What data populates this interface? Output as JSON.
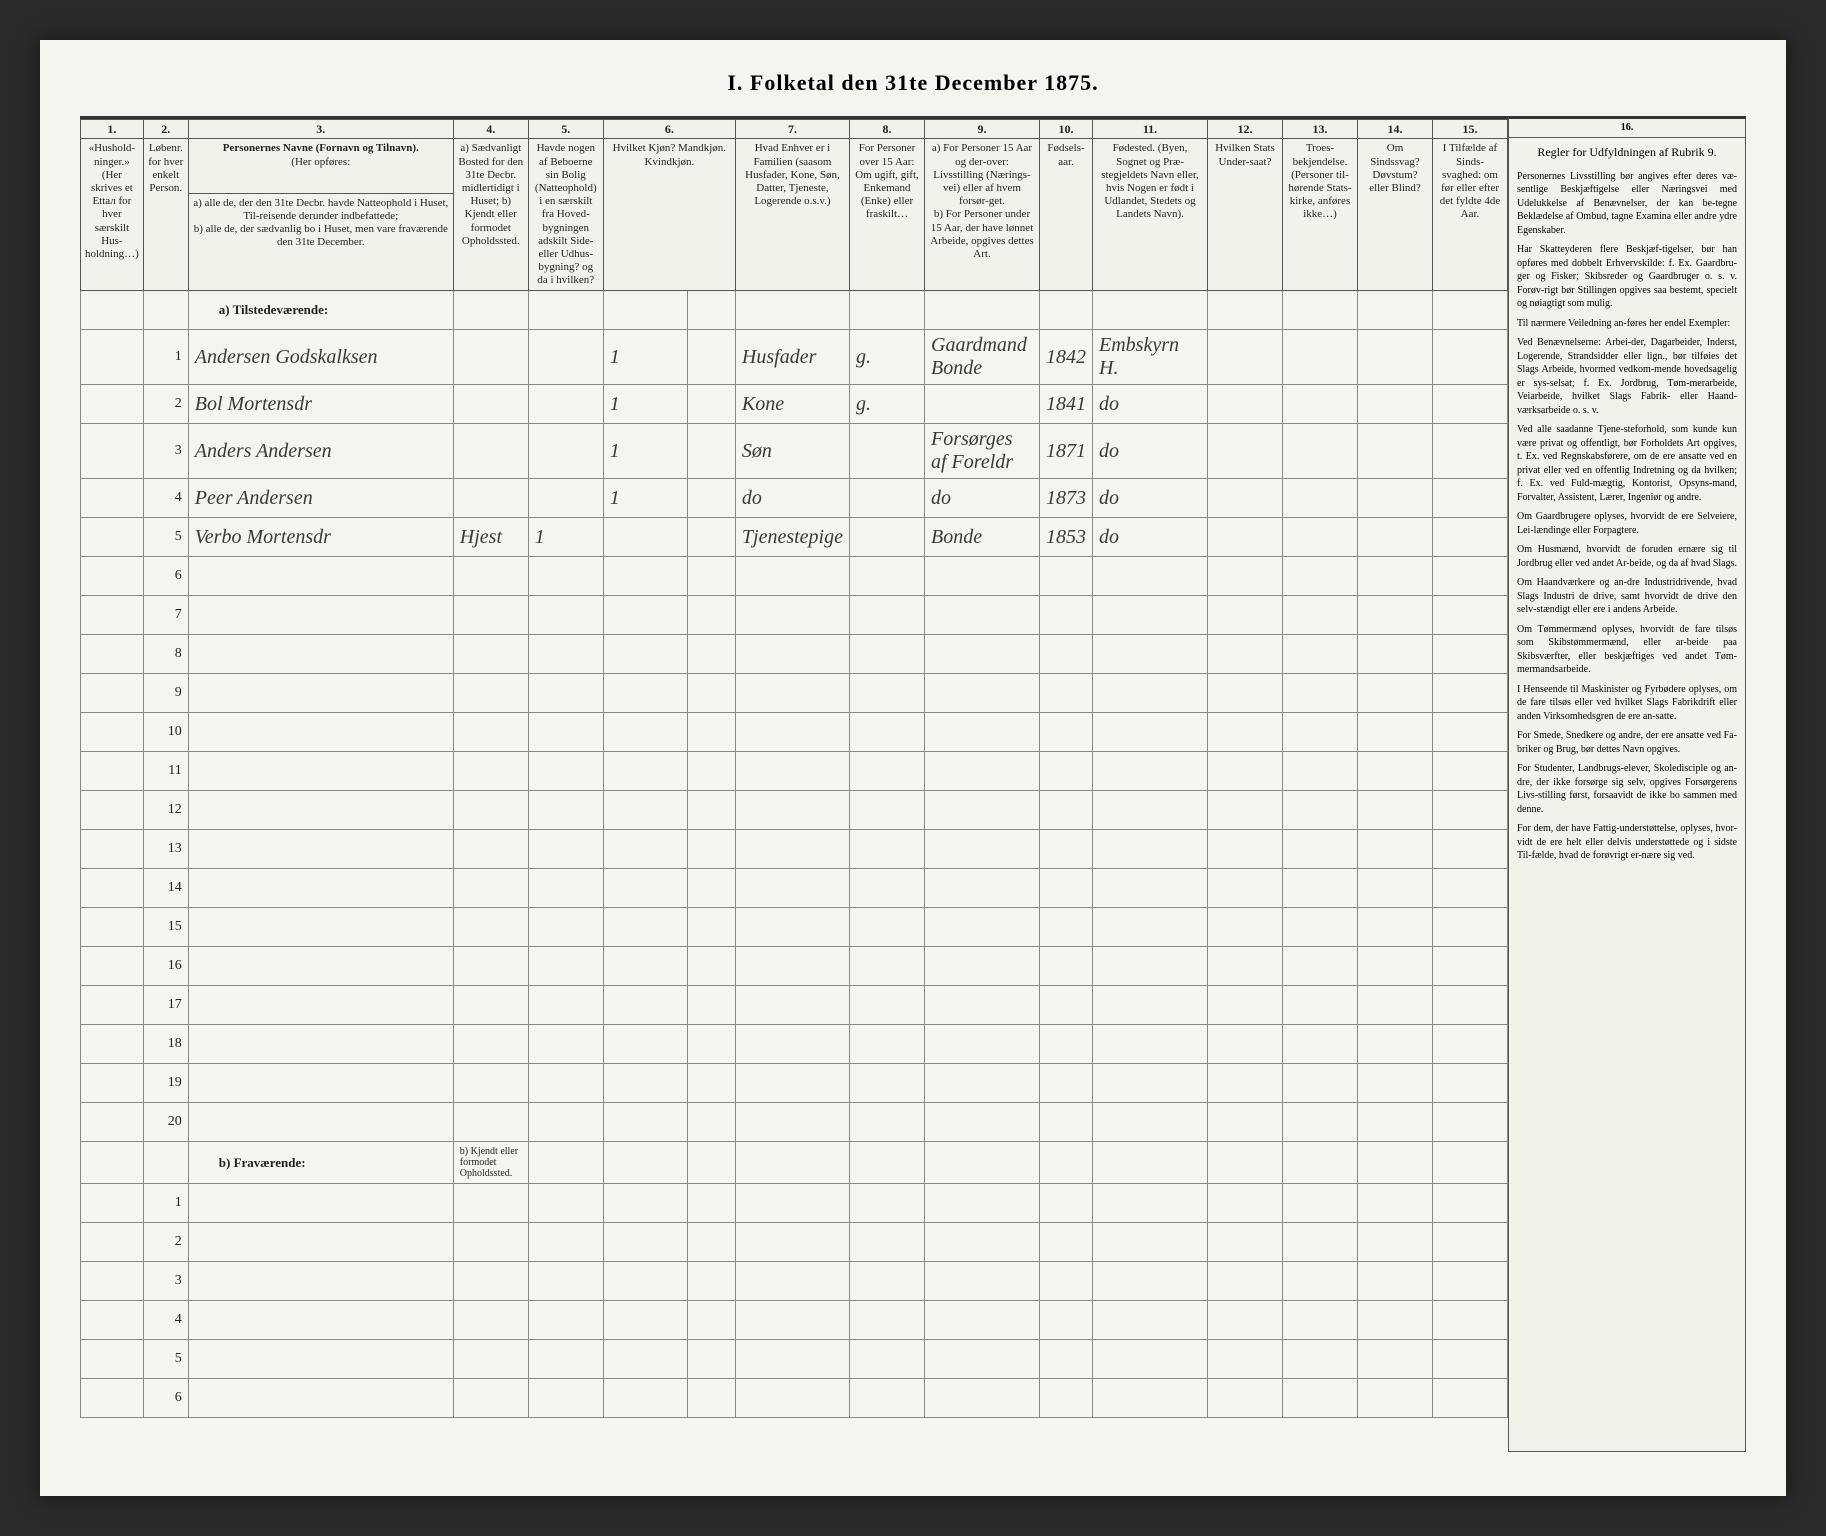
{
  "title": "I. Folketal den 31te December 1875.",
  "colnums": [
    "1.",
    "2.",
    "3.",
    "4.",
    "5.",
    "6.",
    "7.",
    "8.",
    "9.",
    "10.",
    "11.",
    "12.",
    "13.",
    "14.",
    "15."
  ],
  "headers": {
    "c1": "«Hushold-ninger.» (Her skrives et Ettал for hver særskilt Hus-holdning…)",
    "c2": "Løbenr. for hver enkelt Person.",
    "c3_title": "Personernes Navne (Fornavn og Tilnavn).",
    "c3_a": "a) alle de, der den 31te Decbr. havde Natteophold i Huset, Til-reisende derunder indbefattede;",
    "c3_b": "b) alle de, der sædvanlig bo i Huset, men vare fraværende den 31te December.",
    "c4": "a) Sædvanligt Bosted for den 31te Decbr. midlertidigt i Huset; b) Kjendt eller formodet Opholdssted.",
    "c5": "Havde nogen af Beboerne sin Bolig (Natteophold) i en særskilt fra Hoved-bygningen adskilt Side- eller Udhus-bygning? og da i hvilken?",
    "c6": "Hvilket Kjøn? Mandkjøn. Kvindkjøn.",
    "c7": "Hvad Enhver er i Familien (saasom Husfader, Kone, Søn, Datter, Tjenestе, Logerende о.s.v.)",
    "c8": "For Personer over 15 Aar: Om ugift, gift, Enkemand (Enke) eller fraskilt…",
    "c9_a": "a) For Personer 15 Aar og der-over: Livsstilling (Nærings-vei) eller af hvem forsør-get.",
    "c9_b": "b) For Personer under 15 Aar, der have lønnet Arbeide, opgives dettes Art.",
    "c10": "Fødsels-aar.",
    "c11": "Fødested. (Byen, Sognet og Præ-stegjeldets Navn eller, hvis Nogen er født i Udlandet, Stedets og Landets Navn).",
    "c12": "Hvilken Stats Under-saat?",
    "c13": "Troes-bekjendelse. (Personеr til-hørende Stats-kirkе, anføres ikke…)",
    "c14": "Om Sindssvag? Døvstum? eller Blind?",
    "c15": "I Tilfælde af Sinds-svaghed: om før eller efter det fyldte 4de Aar."
  },
  "section_a": "a) Tilstedeværende:",
  "section_b": "b) Fraværende:",
  "section_b_col4": "b) Kjendt eller formodet Opholdssted.",
  "rows": [
    {
      "n": "1",
      "name": "Andersen Godskalksen",
      "c5": "",
      "c6": "1",
      "c7": "Husfader",
      "c8": "g.",
      "c9": "Gaardmand Bonde",
      "c10": "1842",
      "c11": "Embskyrn H.",
      "c12": "",
      "c13": "",
      "c14": "",
      "c15": ""
    },
    {
      "n": "2",
      "name": "Bol Mortensdr",
      "c5": "",
      "c6": "1",
      "c7": "Kone",
      "c8": "g.",
      "c9": "",
      "c10": "1841",
      "c11": "do",
      "c12": "",
      "c13": "",
      "c14": "",
      "c15": ""
    },
    {
      "n": "3",
      "name": "Anders Andersen",
      "c5": "",
      "c6": "1",
      "c7": "Søn",
      "c8": "",
      "c9": "Forsørges af Foreldr",
      "c10": "1871",
      "c11": "do",
      "c12": "",
      "c13": "",
      "c14": "",
      "c15": ""
    },
    {
      "n": "4",
      "name": "Peer Andersen",
      "c5": "",
      "c6": "1",
      "c7": "do",
      "c8": "",
      "c9": "do",
      "c10": "1873",
      "c11": "do",
      "c12": "",
      "c13": "",
      "c14": "",
      "c15": ""
    },
    {
      "n": "5",
      "name": "Verbo Mortensdr",
      "c4": "Hjest",
      "c5": "1",
      "c6": "",
      "c7": "Tjenestepige",
      "c8": "",
      "c9": "Bonde",
      "c10": "1853",
      "c11": "do",
      "c12": "",
      "c13": "",
      "c14": "",
      "c15": ""
    }
  ],
  "blank_nums_a": [
    "6",
    "7",
    "8",
    "9",
    "10",
    "11",
    "12",
    "13",
    "14",
    "15",
    "16",
    "17",
    "18",
    "19",
    "20"
  ],
  "blank_nums_b": [
    "1",
    "2",
    "3",
    "4",
    "5",
    "6"
  ],
  "sidebar": {
    "colnum": "16.",
    "title": "Regler for Udfyldningen af Rubrik 9.",
    "paras": [
      "Personernes Livsstilling bør angives efter deres væ-sentlige Beskjæftigelse eller Næringsvei med Udelukkelse af Benævnelser, der kan be-tegne Beklædelse af Ombud, tagne Examina eller andre ydre Egenskaber.",
      "Har Skatteyderen flere Beskjæf-tigelser, bør han opføres med dobbelt Erhvervskilde: f. Ex. Gaardbru-ger og Fisker; Skibsreder og Gaardbruger o. s. v. Forøv-rigt bør Stillingen opgives saa bestemt, specielt og nøiagtigt som mulig.",
      "Til nærmere Veiledning an-føres her endel Exempler:",
      "Ved Benævnelserne: Arbei-der, Dagаrbeider, Inderst, Logerende, Strandsidder eller lign., bør tilføies det Slags Arbeide, hvormed vedkom-mende hovedsagelig er sys-selsat; f. Ex. Jordbrug, Tøm-merаrbeide, Veiarbeide, hvilket Slags Fabrik- eller Haand-værksаrbeide o. s. v.",
      "Ved alle saadanne Tjene-steforhold, som kunde kun være privat og offentligt, bør Forholdets Art opgives, t. Ex. ved Regnskabsførere, om de ere ansatte ved en privat eller ved en offentlig Indretning og da hvilken; f. Ex. ved Fuld-mægtig, Kontorist, Opsyns-mand, Forvalter, Assistent, Lærer, Ingeniør og andre.",
      "Om Gaardbrugere oplyses, hvorvidt de ere Selveiere, Lei-lændinge eller Forpagtere.",
      "Om Husmænd, hvorvidt de foruden ernære sig til Jordbrug eller ved andet Ar-beide, og da af hvad Slags.",
      "Om Haandværkere og an-dre Industridrivende, hvad Slags Industri de drive, samt hvorvidt de drive den selv-stændigt eller ere i andens Arbeide.",
      "Om Tømmermænd oplyses, hvorvidt de fare tilsøs som Skibstømmermænd, eller ar-beide paa Skibsværfter, eller beskjæftiges ved andet Tøm-mermandsarbeide.",
      "I Henseende til Maskinister og Fyrbødere oplyses, om de fare tilsøs eller ved hvilket Slags Fabrikdrift eller anden Virksomhedsgren de ere an-satte.",
      "For Smede, Snedkere og andre, der ere ansatte ved Fa-briker og Brug, bør dettes Navn opgives.",
      "For Studenter, Landbrugs-elever, Skoledisciple og an-dre, der ikke forsørge sig selv, opgives Forsørgerens Livs-stilling først, forsaаvidt de ikke bo sammen med denne.",
      "For dem, der have Fattig-understøttelse, oplyses, hvor-vidt de ere helt eller delvis understøttede og i sidste Til-fælde, hvad de forøvrigt er-nære sig ved."
    ]
  }
}
